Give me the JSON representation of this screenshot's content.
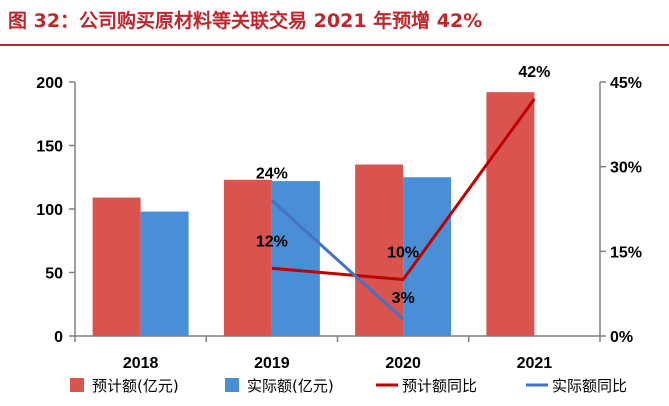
{
  "title": "图 32：公司购买原材料等关联交易 2021 年预增 42%",
  "chart_data": {
    "type": "bar",
    "categories": [
      "2018",
      "2019",
      "2020",
      "2021"
    ],
    "series": [
      {
        "name": "预计额(亿元)",
        "kind": "bar",
        "axis": "left",
        "color": "#d9534f",
        "values": [
          109,
          123,
          135,
          192
        ]
      },
      {
        "name": "实际额(亿元)",
        "kind": "bar",
        "axis": "left",
        "color": "#4a8fd6",
        "values": [
          98,
          122,
          125,
          null
        ]
      },
      {
        "name": "预计额同比",
        "kind": "line",
        "axis": "right",
        "color": "#c00000",
        "values": [
          null,
          12,
          10,
          42
        ],
        "labels": [
          null,
          "12%",
          "10%",
          "42%"
        ]
      },
      {
        "name": "实际额同比",
        "kind": "line",
        "axis": "right",
        "color": "#4472c4",
        "values": [
          null,
          24,
          3,
          null
        ],
        "labels": [
          null,
          "24%",
          "3%",
          null
        ]
      }
    ],
    "y_left": {
      "min": 0,
      "max": 200,
      "ticks": [
        "0",
        "50",
        "100",
        "150",
        "200"
      ]
    },
    "y_right": {
      "min": 0,
      "max": 45,
      "ticks": [
        "0%",
        "15%",
        "30%",
        "45%"
      ]
    },
    "legend_position": "bottom",
    "grid": false
  }
}
